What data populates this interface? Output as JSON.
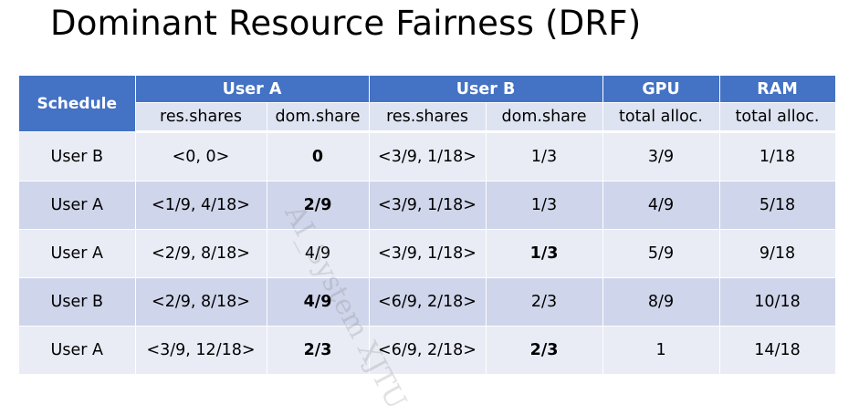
{
  "title": "Dominant Resource Fairness (DRF)",
  "table": {
    "schedule_header": "Schedule",
    "groups": [
      "User A",
      "User B",
      "GPU",
      "RAM"
    ],
    "subheaders": [
      "res.shares",
      "dom.share",
      "res.shares",
      "dom.share",
      "total alloc.",
      "total alloc."
    ],
    "rows": [
      {
        "schedule": "User B",
        "a_res": "<0, 0>",
        "a_dom": "0",
        "b_res": "<3/9, 1/18>",
        "b_dom": "1/3",
        "gpu": "3/9",
        "ram": "1/18"
      },
      {
        "schedule": "User A",
        "a_res": "<1/9, 4/18>",
        "a_dom": "2/9",
        "b_res": "<3/9, 1/18>",
        "b_dom": "1/3",
        "gpu": "4/9",
        "ram": "5/18"
      },
      {
        "schedule": "User A",
        "a_res": "<2/9, 8/18>",
        "a_dom": "4/9",
        "b_res": "<3/9, 1/18>",
        "b_dom": "1/3",
        "gpu": "5/9",
        "ram": "9/18"
      },
      {
        "schedule": "User B",
        "a_res": "<2/9, 8/18>",
        "a_dom": "4/9",
        "b_res": "<6/9, 2/18>",
        "b_dom": "2/3",
        "gpu": "8/9",
        "ram": "10/18"
      },
      {
        "schedule": "User A",
        "a_res": "<3/9, 12/18>",
        "a_dom": "2/3",
        "b_res": "<6/9, 2/18>",
        "b_dom": "2/3",
        "gpu": "1",
        "ram": "14/18"
      }
    ]
  },
  "watermark": "AI_System XJTU"
}
